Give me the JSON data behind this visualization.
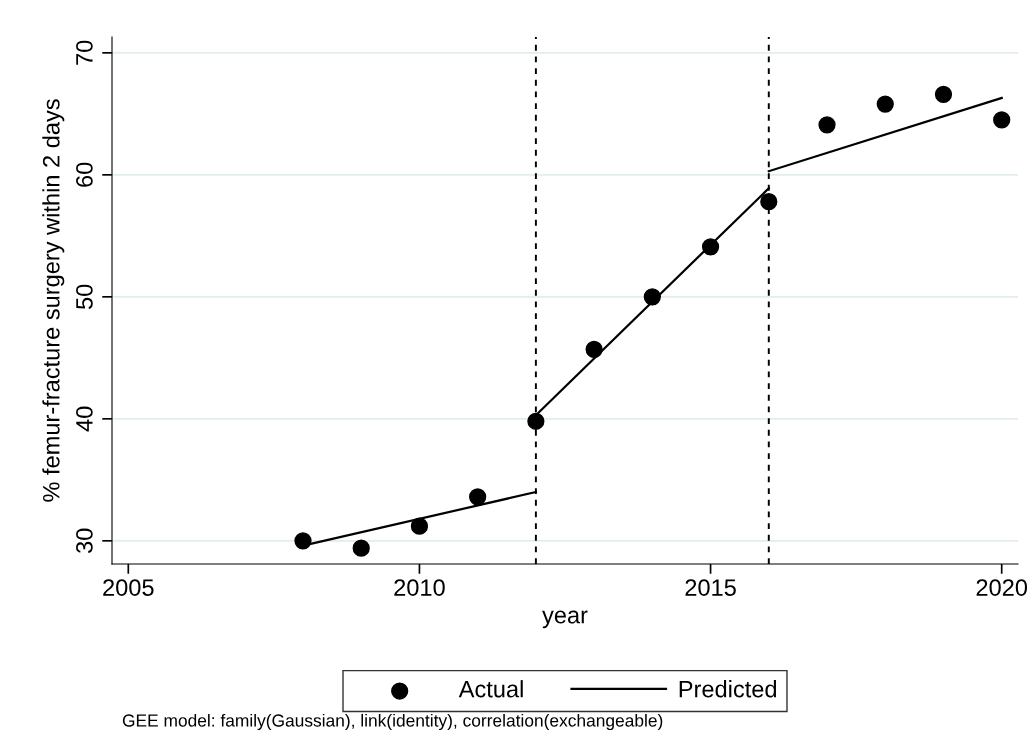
{
  "chart_data": {
    "type": "scatter",
    "xlabel": "year",
    "ylabel": "% femur-fracture surgery within 2 days",
    "xlim": [
      2004.72,
      2020.28
    ],
    "xticks": [
      2005,
      2010,
      2015,
      2020
    ],
    "ylim": [
      28.1,
      71.3
    ],
    "yticks": [
      30,
      40,
      50,
      60,
      70
    ],
    "grid": "y",
    "legend": "bottom",
    "series": [
      {
        "name": "Actual",
        "marker": "circle",
        "color": "#000000",
        "x": [
          2008,
          2009,
          2010,
          2011,
          2012,
          2013,
          2014,
          2015,
          2016,
          2017,
          2018,
          2019,
          2020
        ],
        "values": [
          30.0,
          29.4,
          31.2,
          33.6,
          39.8,
          45.7,
          50.0,
          54.1,
          57.8,
          64.1,
          65.8,
          66.6,
          64.5
        ]
      },
      {
        "name": "Predicted",
        "type": "line",
        "line_style": "solid",
        "color": "#000000",
        "x": [
          2008,
          2012
        ],
        "values": [
          29.6,
          34.0
        ]
      },
      {
        "type": "line",
        "line_style": "solid",
        "color": "#000000",
        "x": [
          2012,
          2016
        ],
        "values": [
          40.3,
          58.9
        ]
      },
      {
        "type": "line",
        "line_style": "solid",
        "color": "#000000",
        "x": [
          2016,
          2020
        ],
        "values": [
          60.3,
          66.3
        ]
      }
    ],
    "ref_lines": [
      {
        "axis": "x",
        "value": 2012,
        "line_style": "dashed",
        "color": "#000000"
      },
      {
        "axis": "x",
        "value": 2016,
        "line_style": "dashed",
        "color": "#000000"
      }
    ],
    "annotations": [
      "GEE model: family(Gaussian), link(identity), correlation(exchangeable)"
    ]
  }
}
